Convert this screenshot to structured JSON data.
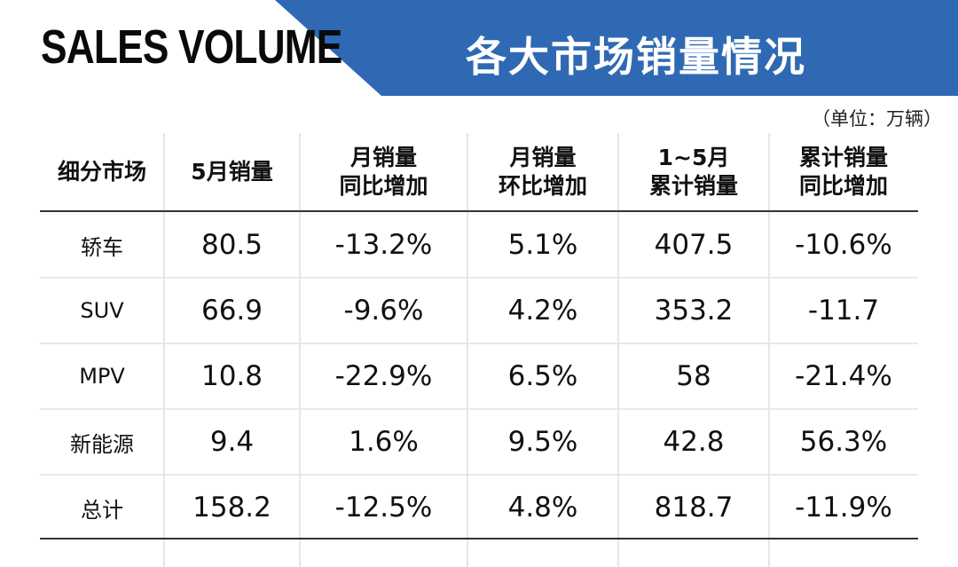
{
  "header": {
    "title_en": "SALES VOLUME",
    "title_cn": "各大市场销量情况",
    "unit": "（单位：万辆）"
  },
  "table": {
    "headers": [
      [
        "细分市场"
      ],
      [
        "5月销量"
      ],
      [
        "月销量",
        "同比增加"
      ],
      [
        "月销量",
        "环比增加"
      ],
      [
        "1~5月",
        "累计销量"
      ],
      [
        "累计销量",
        "同比增加"
      ]
    ],
    "rows": [
      [
        "轿车",
        "80.5",
        "-13.2%",
        "5.1%",
        "407.5",
        "-10.6%"
      ],
      [
        "SUV",
        "66.9",
        "-9.6%",
        "4.2%",
        "353.2",
        "-11.7"
      ],
      [
        "MPV",
        "10.8",
        "-22.9%",
        "6.5%",
        "58",
        "-21.4%"
      ],
      [
        "新能源",
        "9.4",
        "1.6%",
        "9.5%",
        "42.8",
        "56.3%"
      ],
      [
        "总计",
        "158.2",
        "-12.5%",
        "4.8%",
        "818.7",
        "-11.9%"
      ]
    ]
  }
}
